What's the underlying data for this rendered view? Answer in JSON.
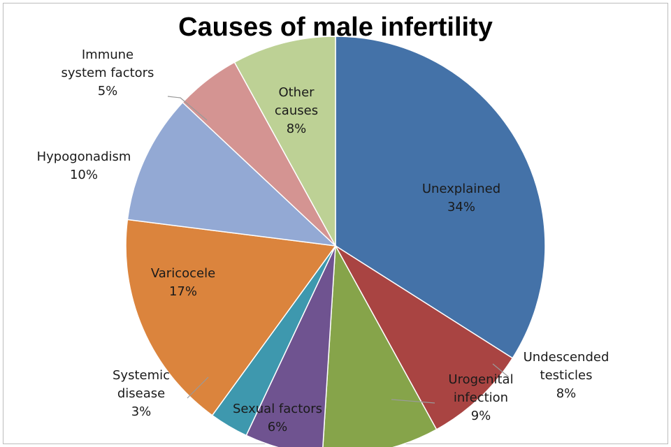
{
  "chart_data": {
    "type": "pie",
    "title": "Causes of male infertility",
    "slices": [
      {
        "label": [
          "Unexplained"
        ],
        "percent_label": "34%",
        "value": 34,
        "color": "#4472A8"
      },
      {
        "label": [
          "Undescended",
          "testicles"
        ],
        "percent_label": "8%",
        "value": 8,
        "color": "#A94442"
      },
      {
        "label": [
          "Urogenital",
          "infection"
        ],
        "percent_label": "9%",
        "value": 9,
        "color": "#86A44A"
      },
      {
        "label": [
          "Sexual factors"
        ],
        "percent_label": "6%",
        "value": 6,
        "color": "#6F5390"
      },
      {
        "label": [
          "Systemic",
          "disease"
        ],
        "percent_label": "3%",
        "value": 3,
        "color": "#3E98AE"
      },
      {
        "label": [
          "Varicocele"
        ],
        "percent_label": "17%",
        "value": 17,
        "color": "#DB843D"
      },
      {
        "label": [
          "Hypogonadism"
        ],
        "percent_label": "10%",
        "value": 10,
        "color": "#93A9D4"
      },
      {
        "label": [
          "Immune",
          "system factors"
        ],
        "percent_label": "5%",
        "value": 5,
        "color": "#D49492"
      },
      {
        "label": [
          "Other",
          "causes"
        ],
        "percent_label": "8%",
        "value": 8,
        "color": "#BDD195"
      }
    ]
  }
}
